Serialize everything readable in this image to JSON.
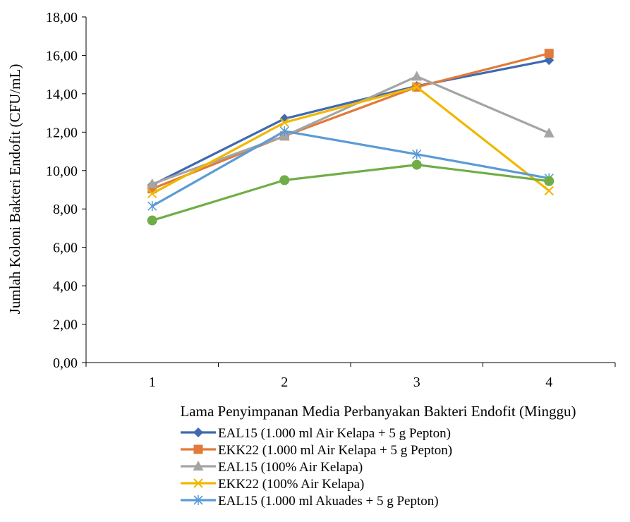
{
  "chart_data": {
    "type": "line",
    "xlabel": "Lama Penyimpanan Media Perbanyakan Bakteri Endofit (Minggu)",
    "ylabel": "Jumlah Koloni Bakteri Endofit (CFU/mL)",
    "categories": [
      "1",
      "2",
      "3",
      "4"
    ],
    "ylim": [
      0,
      18
    ],
    "yticks": [
      "0,00",
      "2,00",
      "4,00",
      "6,00",
      "8,00",
      "10,00",
      "12,00",
      "14,00",
      "16,00",
      "18,00"
    ],
    "grid": false,
    "legend_position": "bottom",
    "series": [
      {
        "name": "EAL15 (1.000 ml Air Kelapa + 5 g Pepton)",
        "color": "#4169b0",
        "marker": "diamond",
        "values": [
          9.25,
          12.7,
          14.4,
          15.75
        ]
      },
      {
        "name": "EKK22 (1.000 ml Air Kelapa + 5 g Pepton)",
        "color": "#e07b39",
        "marker": "square",
        "values": [
          9.05,
          11.8,
          14.35,
          16.1
        ]
      },
      {
        "name": "EAL15 (100% Air Kelapa)",
        "color": "#a5a5a5",
        "marker": "triangle",
        "values": [
          9.3,
          11.8,
          14.9,
          11.95
        ]
      },
      {
        "name": "EKK22 (100% Air Kelapa)",
        "color": "#f0b800",
        "marker": "x",
        "values": [
          8.8,
          12.5,
          14.35,
          8.95
        ]
      },
      {
        "name": "EAL15 (1.000 ml Akuades + 5 g Pepton)",
        "color": "#5b9bd5",
        "marker": "star",
        "values": [
          8.15,
          12.05,
          10.85,
          9.6
        ]
      },
      {
        "name": "",
        "color": "#70ad47",
        "marker": "circle",
        "values": [
          7.4,
          9.5,
          10.3,
          9.45
        ]
      }
    ]
  }
}
